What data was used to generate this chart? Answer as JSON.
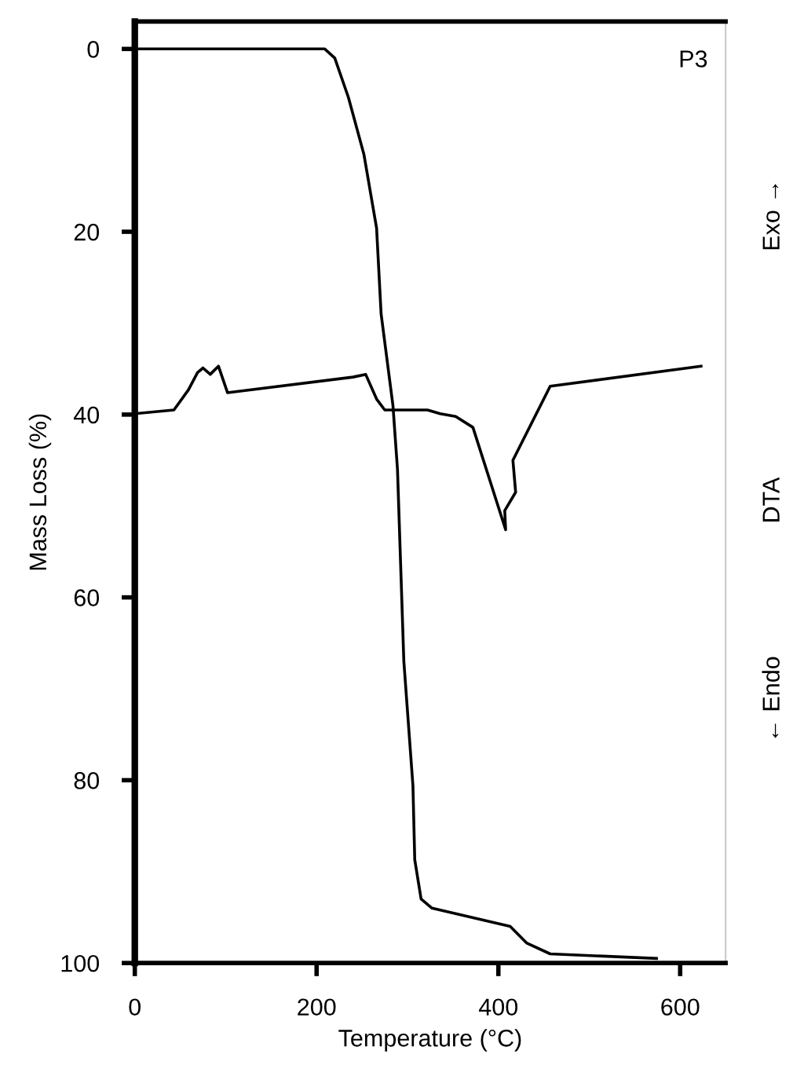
{
  "chart_data": {
    "type": "line",
    "xlabel": "Temperature (°C)",
    "ylabel": "Mass Loss (%)",
    "y2label": "DTA",
    "annotations": [
      "P3",
      "Exo →",
      "← Endo"
    ],
    "series": [
      {
        "color": "#000000",
        "x": [
          0,
          209,
          220,
          235,
          252,
          266,
          271,
          284,
          289,
          296,
          306,
          308,
          315,
          327,
          413,
          431,
          457,
          574
        ],
        "values": [
          0,
          0,
          1,
          5.3,
          11.5,
          19.6,
          29,
          39,
          46,
          67,
          80.6,
          88.7,
          93,
          94,
          96,
          97.8,
          99,
          99.5
        ]
      },
      {
        "color": "#000000",
        "x": [
          0,
          43,
          59,
          69,
          75,
          83,
          92,
          102,
          240,
          254,
          266,
          275,
          322,
          336,
          353,
          372,
          408,
          407,
          419,
          416,
          457,
          623
        ],
        "values": [
          39.9,
          39.5,
          37.3,
          35.4,
          34.9,
          35.6,
          34.7,
          37.6,
          35.9,
          35.6,
          38.3,
          39.5,
          39.5,
          39.9,
          40.2,
          41.4,
          52.6,
          50.5,
          48.5,
          45,
          36.9,
          34.7
        ]
      }
    ],
    "xlim": [
      0,
      650
    ],
    "xticks": [
      0,
      200,
      400,
      600
    ],
    "ylim": [
      100,
      -3
    ],
    "yticks": [
      0,
      20,
      40,
      60,
      80,
      100
    ],
    "grid": false,
    "legend": false,
    "marker": "none",
    "line_style": "solid"
  }
}
